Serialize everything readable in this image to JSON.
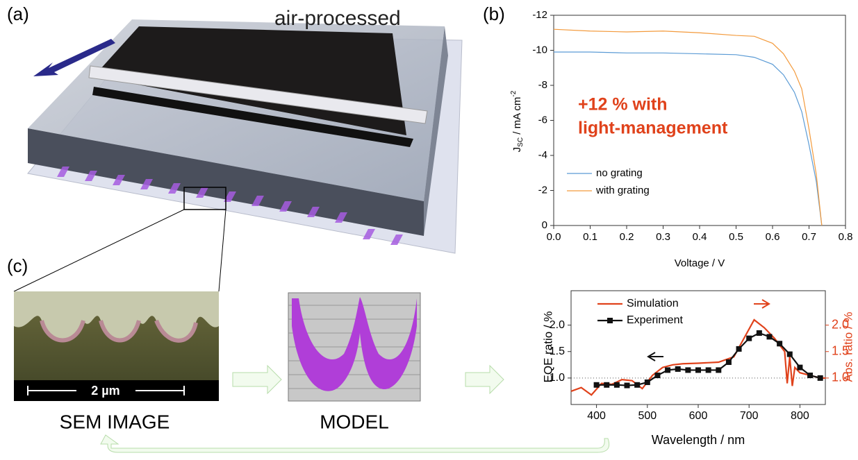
{
  "figure": {
    "panel_a": "(a)",
    "panel_b": "(b)",
    "panel_c": "(c)",
    "process_label": "air-processed",
    "scale_bar": "2 µm",
    "sem_label": "SEM IMAGE",
    "model_label": "MODEL"
  },
  "chart_data": [
    {
      "type": "line",
      "annotation": [
        "+12 % with",
        "light-management"
      ],
      "x_label": "Voltage / V",
      "y_label": {
        "main": "J",
        "sub": "SC",
        "rest": " / mA cm",
        "sup": "-2"
      },
      "x": [
        0,
        0.1,
        0.2,
        0.3,
        0.4,
        0.5,
        0.55,
        0.6,
        0.63,
        0.66,
        0.68,
        0.7,
        0.72,
        0.735
      ],
      "series": [
        {
          "name": "no grating",
          "color": "#5b9bd5",
          "values": [
            -9.9,
            -9.9,
            -9.85,
            -9.85,
            -9.8,
            -9.75,
            -9.6,
            -9.2,
            -8.6,
            -7.6,
            -6.5,
            -4.6,
            -2.5,
            0
          ]
        },
        {
          "name": "with grating",
          "color": "#f39a3c",
          "values": [
            -11.2,
            -11.1,
            -11.05,
            -11.1,
            -11.0,
            -10.85,
            -10.8,
            -10.4,
            -9.8,
            -8.8,
            -7.8,
            -5.5,
            -2.9,
            0
          ]
        }
      ],
      "xlim": [
        0,
        0.8
      ],
      "xticks": [
        {
          "value": 0,
          "label": "0.0"
        },
        0.1,
        0.2,
        0.3,
        0.4,
        0.5,
        0.6,
        0.7,
        0.8
      ],
      "ylim": [
        0,
        -12
      ],
      "yticks": [
        0,
        -2,
        -4,
        -6,
        -8,
        -10,
        -12
      ]
    },
    {
      "type": "line",
      "x_label": "Wavelength / nm",
      "y_label": "EQE ratio / %",
      "y2_label": "Abs. ratio / %",
      "series": [
        {
          "name": "Simulation",
          "color": "#e0421b",
          "axis": "y2",
          "x": [
            350,
            370,
            390,
            410,
            430,
            450,
            470,
            490,
            510,
            530,
            550,
            570,
            600,
            640,
            670,
            690,
            710,
            730,
            750,
            770,
            775,
            780,
            785,
            790,
            800,
            820,
            840,
            850
          ],
          "values": [
            0.75,
            0.82,
            0.68,
            0.9,
            0.88,
            0.97,
            0.95,
            0.8,
            1.05,
            1.2,
            1.25,
            1.27,
            1.28,
            1.3,
            1.4,
            1.75,
            2.1,
            1.95,
            1.75,
            1.5,
            0.9,
            1.4,
            0.85,
            1.2,
            1.1,
            1.05,
            1.0,
            1.0
          ]
        },
        {
          "name": "Experiment",
          "color": "#111111",
          "marker": "square",
          "x": [
            400,
            420,
            440,
            460,
            480,
            500,
            520,
            540,
            560,
            580,
            600,
            620,
            640,
            660,
            680,
            700,
            720,
            740,
            760,
            780,
            800,
            820,
            840
          ],
          "values": [
            0.87,
            0.87,
            0.87,
            0.86,
            0.87,
            0.92,
            1.05,
            1.15,
            1.17,
            1.15,
            1.15,
            1.15,
            1.15,
            1.3,
            1.55,
            1.75,
            1.85,
            1.78,
            1.65,
            1.45,
            1.2,
            1.05,
            1.0
          ]
        }
      ],
      "xlim": [
        350,
        850
      ],
      "xticks": [
        400,
        500,
        600,
        700,
        800
      ],
      "ylim": [
        0.5,
        2.65
      ],
      "yticks": [
        {
          "value": 1,
          "label": "1.0"
        },
        1.5,
        {
          "value": 2,
          "label": "2.0"
        }
      ],
      "y2lim": [
        0.5,
        2.65
      ],
      "y2ticks": [
        {
          "value": 1,
          "label": "1.0"
        },
        1.5,
        {
          "value": 2,
          "label": "2.0"
        }
      ],
      "reference_line": 1
    }
  ]
}
